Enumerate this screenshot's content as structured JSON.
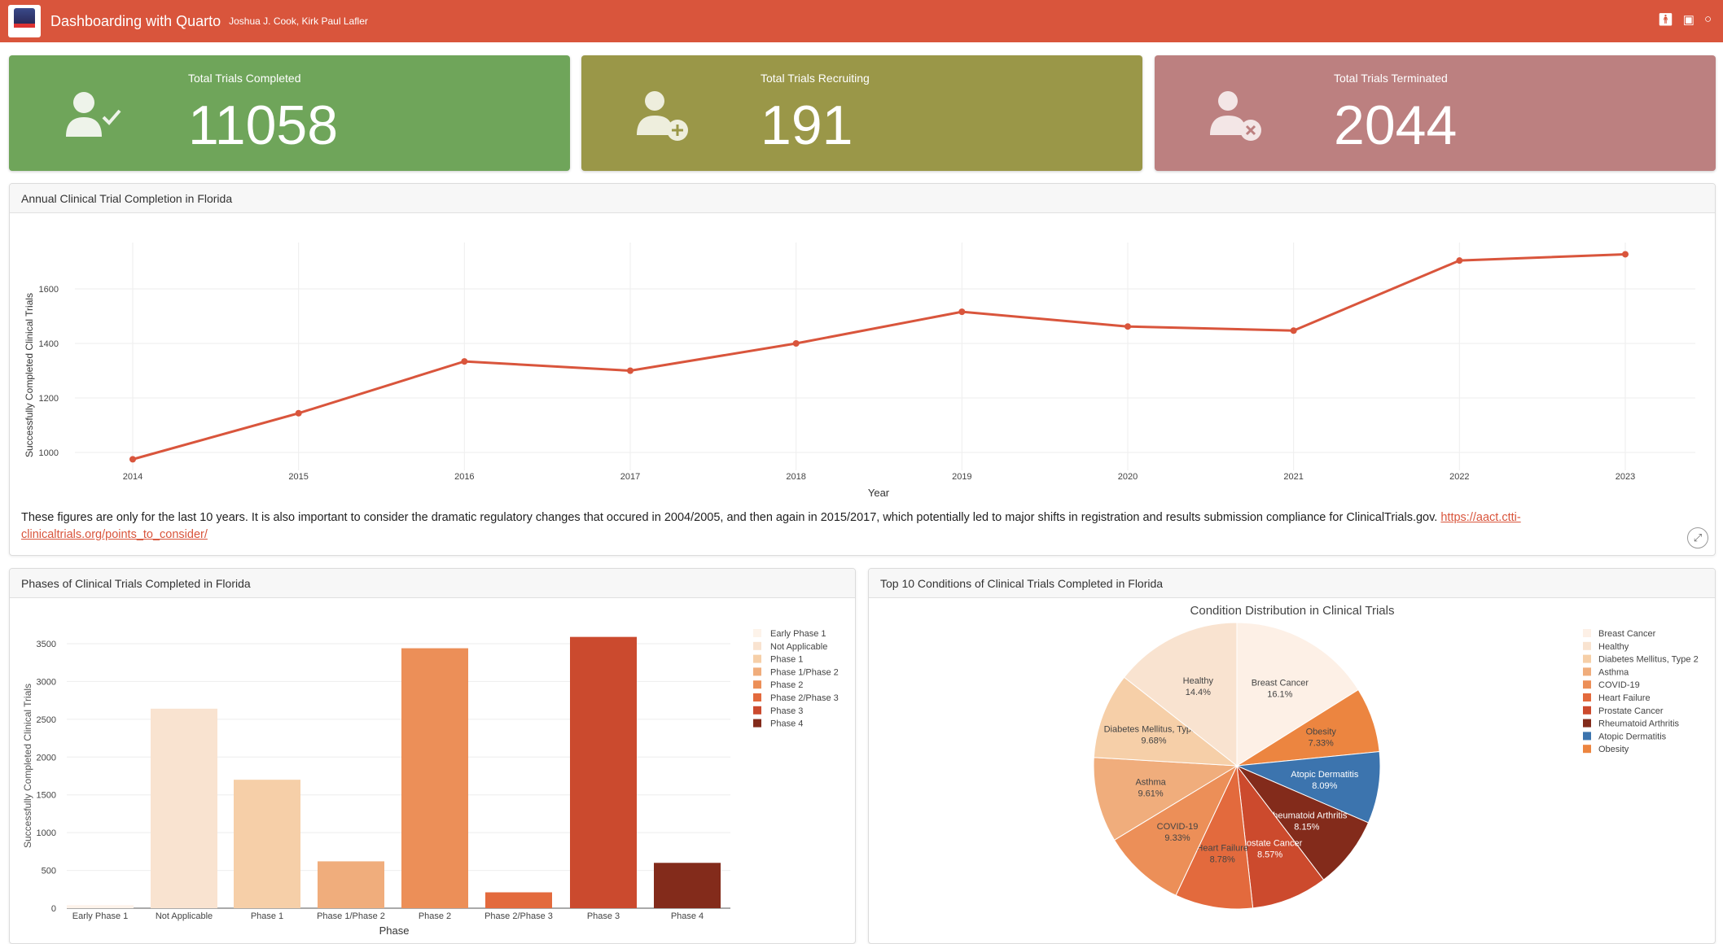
{
  "header": {
    "title": "Dashboarding with Quarto",
    "authors": "Joshua J. Cook, Kirk Paul Lafler",
    "icons": [
      "person-icon",
      "linkedin-icon",
      "github-icon"
    ]
  },
  "value_boxes": [
    {
      "title": "Total Trials Completed",
      "value": "11058",
      "color": "#6fa55a",
      "icon": "user-check-icon"
    },
    {
      "title": "Total Trials Recruiting",
      "value": "191",
      "color": "#9a9748",
      "icon": "user-plus-icon"
    },
    {
      "title": "Total Trials Terminated",
      "value": "2044",
      "color": "#bc8080",
      "icon": "user-x-icon"
    }
  ],
  "line_card": {
    "title": "Annual Clinical Trial Completion in Florida",
    "note": "These figures are only for the last 10 years. It is also important to consider the dramatic regulatory changes that occured in 2004/2005, and then again in 2015/2017, which potentially led to major shifts in registration and results submission compliance for ClinicalTrials.gov. ",
    "link": "https://aact.ctti-clinicaltrials.org/points_to_consider/"
  },
  "bar_card": {
    "title": "Phases of Clinical Trials Completed in Florida"
  },
  "pie_card": {
    "title": "Top 10 Conditions of Clinical Trials Completed in Florida"
  },
  "chart_data": [
    {
      "type": "line",
      "xlabel": "Year",
      "ylabel": "Successfully Completed Clinical Trials",
      "x": [
        2014,
        2015,
        2016,
        2017,
        2018,
        2019,
        2020,
        2021,
        2022,
        2023
      ],
      "values": [
        975,
        1144,
        1334,
        1300,
        1400,
        1516,
        1462,
        1447,
        1704,
        1727
      ],
      "yticks": [
        1000,
        1200,
        1400,
        1600
      ],
      "ylim": [
        950,
        1800
      ],
      "color": "#d9553c",
      "grid": true
    },
    {
      "type": "bar",
      "xlabel": "Phase",
      "ylabel": "Successfully Completed Clinical Trials",
      "categories": [
        "Early Phase 1",
        "Not Applicable",
        "Phase 1",
        "Phase 1/Phase 2",
        "Phase 2",
        "Phase 2/Phase 3",
        "Phase 3",
        "Phase 4"
      ],
      "values": [
        40,
        2640,
        1700,
        620,
        3440,
        210,
        3590,
        600
      ],
      "colors": [
        "#fdf3ea",
        "#f9e3d0",
        "#f6cfa8",
        "#f0ad7c",
        "#ec8f58",
        "#e36a3d",
        "#cb4a2e",
        "#832b1b"
      ],
      "yticks": [
        0,
        500,
        1000,
        1500,
        2000,
        2500,
        3000,
        3500
      ],
      "ylim": [
        0,
        3700
      ],
      "legend": "right"
    },
    {
      "type": "pie",
      "title": "Condition Distribution in Clinical Trials",
      "labels": [
        "Breast Cancer",
        "Obesity",
        "Atopic Dermatitis",
        "Rheumatoid Arthritis",
        "Prostate Cancer",
        "Heart Failure",
        "COVID-19",
        "Asthma",
        "Diabetes Mellitus, Type 2",
        "Healthy"
      ],
      "values": [
        16.1,
        7.33,
        8.09,
        8.15,
        8.57,
        8.78,
        9.33,
        9.61,
        9.68,
        14.4
      ],
      "value_labels": [
        "16.1%",
        "7.33%",
        "8.09%",
        "8.15%",
        "8.57%",
        "8.78%",
        "9.33%",
        "9.61%",
        "9.68%",
        "14.4%"
      ],
      "colors": [
        "#fdf0e6",
        "#ec8540",
        "#3c74ae",
        "#832b1b",
        "#cc4a2d",
        "#e36a3d",
        "#ec8f58",
        "#f0ad7c",
        "#f6cfa8",
        "#f9e3d0"
      ],
      "legend_order": [
        "Breast Cancer",
        "Healthy",
        "Diabetes Mellitus, Type 2",
        "Asthma",
        "COVID-19",
        "Heart Failure",
        "Prostate Cancer",
        "Rheumatoid Arthritis",
        "Atopic Dermatitis",
        "Obesity"
      ],
      "legend": "right"
    }
  ]
}
